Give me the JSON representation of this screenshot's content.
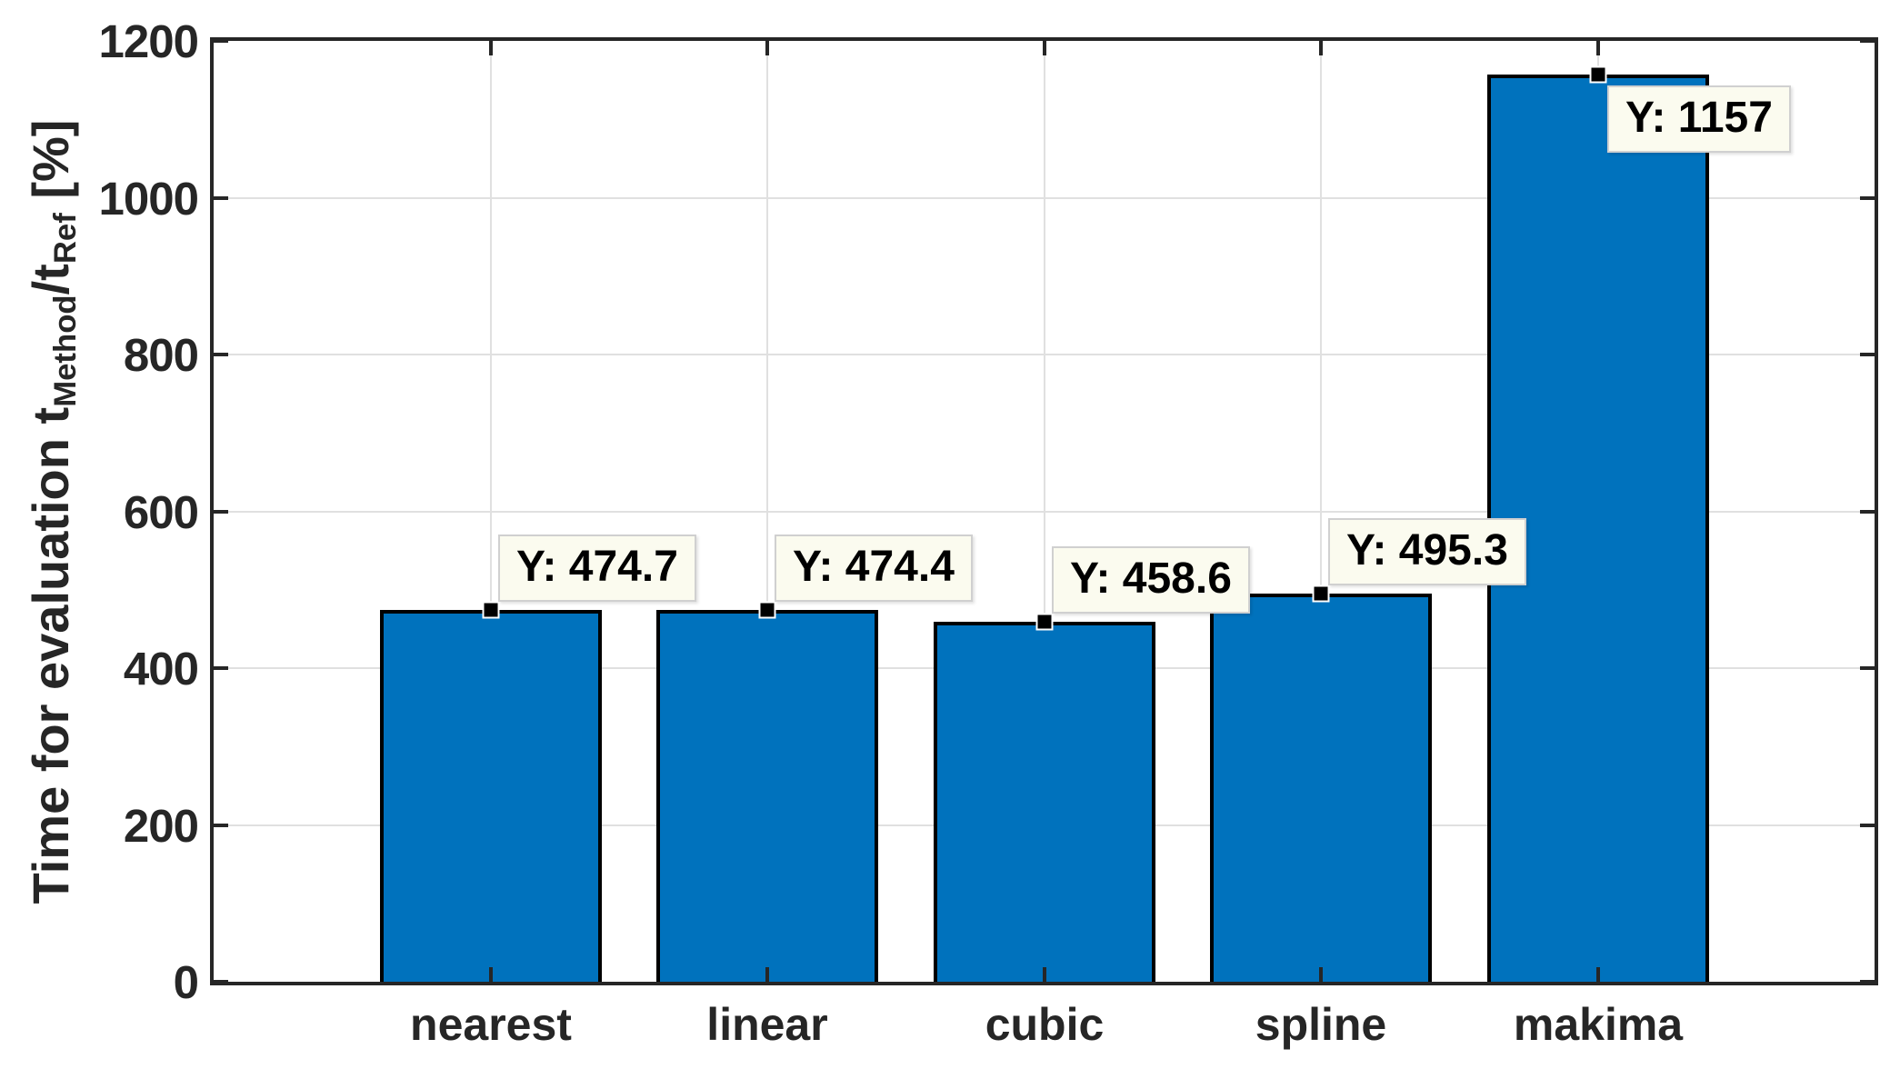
{
  "chart_data": {
    "type": "bar",
    "title": "",
    "xlabel": "",
    "ylabel": "Time for evaluation t_Method/t_Ref [%]",
    "ylabel_parts": {
      "main1": "Time for evaluation t",
      "sub1": "Method",
      "main2": "/t",
      "sub2": "Ref",
      "main3": " [%]"
    },
    "categories": [
      "nearest",
      "linear",
      "cubic",
      "spline",
      "makima"
    ],
    "values": [
      474.7,
      474.4,
      458.6,
      495.3,
      1157
    ],
    "ylim": [
      0,
      1200
    ],
    "xlim": [
      0,
      6
    ],
    "yticks": [
      0,
      200,
      400,
      600,
      800,
      1000,
      1200
    ],
    "ytick_labels": [
      "0",
      "200",
      "400",
      "600",
      "800",
      "1000",
      "1200"
    ],
    "grid": true,
    "legend": null,
    "bar_width_fraction": 0.8,
    "colors": {
      "bar_fill": "#0072BD",
      "bar_edge": "#000000",
      "axis": "#262626",
      "grid": "#E0E0E0",
      "text": "#262626",
      "datatip_background": "#FBFBEF",
      "datatip_border": "#D0D0D0",
      "datatip_text": "#000000",
      "background": "#FFFFFF"
    },
    "datatips": [
      {
        "category": "nearest",
        "text": "Y: 474.7",
        "placement": "above"
      },
      {
        "category": "linear",
        "text": "Y: 474.4",
        "placement": "above"
      },
      {
        "category": "cubic",
        "text": "Y: 458.6",
        "placement": "above"
      },
      {
        "category": "spline",
        "text": "Y: 495.3",
        "placement": "above"
      },
      {
        "category": "makima",
        "text": "Y: 1157",
        "placement": "below"
      }
    ]
  }
}
